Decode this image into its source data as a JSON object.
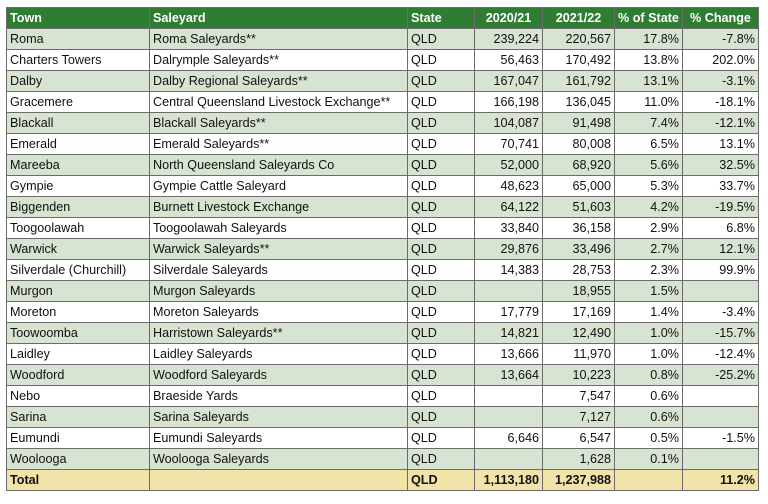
{
  "table": {
    "headers": [
      "Town",
      "Saleyard",
      "State",
      "2020/21",
      "2021/22",
      "% of State",
      "% Change"
    ],
    "rows": [
      [
        "Roma",
        "Roma Saleyards**",
        "QLD",
        "239,224",
        "220,567",
        "17.8%",
        "-7.8%"
      ],
      [
        "Charters Towers",
        "Dalrymple Saleyards**",
        "QLD",
        "56,463",
        "170,492",
        "13.8%",
        "202.0%"
      ],
      [
        "Dalby",
        "Dalby Regional Saleyards**",
        "QLD",
        "167,047",
        "161,792",
        "13.1%",
        "-3.1%"
      ],
      [
        "Gracemere",
        "Central Queensland Livestock Exchange**",
        "QLD",
        "166,198",
        "136,045",
        "11.0%",
        "-18.1%"
      ],
      [
        "Blackall",
        "Blackall Saleyards**",
        "QLD",
        "104,087",
        "91,498",
        "7.4%",
        "-12.1%"
      ],
      [
        "Emerald",
        "Emerald Saleyards**",
        "QLD",
        "70,741",
        "80,008",
        "6.5%",
        "13.1%"
      ],
      [
        "Mareeba",
        "North Queensland Saleyards Co",
        "QLD",
        "52,000",
        "68,920",
        "5.6%",
        "32.5%"
      ],
      [
        "Gympie",
        "Gympie Cattle Saleyard",
        "QLD",
        "48,623",
        "65,000",
        "5.3%",
        "33.7%"
      ],
      [
        "Biggenden",
        "Burnett Livestock Exchange",
        "QLD",
        "64,122",
        "51,603",
        "4.2%",
        "-19.5%"
      ],
      [
        "Toogoolawah",
        "Toogoolawah Saleyards",
        "QLD",
        "33,840",
        "36,158",
        "2.9%",
        "6.8%"
      ],
      [
        "Warwick",
        "Warwick Saleyards**",
        "QLD",
        "29,876",
        "33,496",
        "2.7%",
        "12.1%"
      ],
      [
        "Silverdale (Churchill)",
        "Silverdale Saleyards",
        "QLD",
        "14,383",
        "28,753",
        "2.3%",
        "99.9%"
      ],
      [
        "Murgon",
        "Murgon Saleyards",
        "QLD",
        "",
        "18,955",
        "1.5%",
        ""
      ],
      [
        "Moreton",
        "Moreton Saleyards",
        "QLD",
        "17,779",
        "17,169",
        "1.4%",
        "-3.4%"
      ],
      [
        "Toowoomba",
        "Harristown Saleyards**",
        "QLD",
        "14,821",
        "12,490",
        "1.0%",
        "-15.7%"
      ],
      [
        "Laidley",
        "Laidley Saleyards",
        "QLD",
        "13,666",
        "11,970",
        "1.0%",
        "-12.4%"
      ],
      [
        "Woodford",
        "Woodford Saleyards",
        "QLD",
        "13,664",
        "10,223",
        "0.8%",
        "-25.2%"
      ],
      [
        "Nebo",
        "Braeside Yards",
        "QLD",
        "",
        "7,547",
        "0.6%",
        ""
      ],
      [
        "Sarina",
        "Sarina Saleyards",
        "QLD",
        "",
        "7,127",
        "0.6%",
        ""
      ],
      [
        "Eumundi",
        "Eumundi Saleyards",
        "QLD",
        "6,646",
        "6,547",
        "0.5%",
        "-1.5%"
      ],
      [
        "Woolooga",
        "Woolooga Saleyards",
        "QLD",
        "",
        "1,628",
        "0.1%",
        ""
      ]
    ],
    "total": [
      "Total",
      "",
      "QLD",
      "1,113,180",
      "1,237,988",
      "",
      "11.2%"
    ]
  },
  "colors": {
    "header_bg": "#2e7d32",
    "row_alt_bg": "#d7e4d1",
    "total_bg": "#f2e3a8"
  }
}
